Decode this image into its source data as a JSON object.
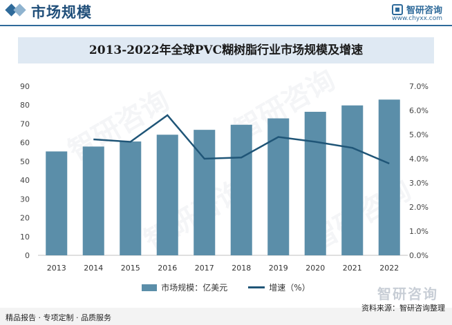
{
  "header": {
    "section_title": "市场规模",
    "brand_name": "智研咨询",
    "brand_url": "www.chyxx.com"
  },
  "chart_data": {
    "type": "bar+line",
    "title": "2013-2022年全球PVC糊树脂行业市场规模及增速",
    "categories": [
      "2013",
      "2014",
      "2015",
      "2016",
      "2017",
      "2018",
      "2019",
      "2020",
      "2021",
      "2022"
    ],
    "series": [
      {
        "name": "市场规模：亿美元",
        "type": "bar",
        "axis": "left",
        "color": "#5b8ea9",
        "values": [
          55.3,
          57.9,
          60.6,
          64.2,
          66.8,
          69.5,
          72.9,
          76.4,
          79.8,
          82.9
        ]
      },
      {
        "name": "增速（%）",
        "type": "line",
        "axis": "right",
        "color": "#1f5577",
        "values": [
          null,
          4.8,
          4.7,
          5.8,
          4.0,
          4.05,
          4.9,
          4.7,
          4.45,
          3.8
        ]
      }
    ],
    "y_left": {
      "min": 0,
      "max": 90,
      "ticks": [
        "0",
        "10",
        "20",
        "30",
        "40",
        "50",
        "60",
        "70",
        "80",
        "90"
      ]
    },
    "y_right": {
      "min": 0,
      "max": 7,
      "ticks": [
        "0.0%",
        "1.0%",
        "2.0%",
        "3.0%",
        "4.0%",
        "5.0%",
        "6.0%",
        "7.0%"
      ]
    }
  },
  "legend": {
    "bar_label": "市场规模：亿美元",
    "line_label": "增速（%）"
  },
  "footer": {
    "left_text": "精品报告 · 专项定制 · 品质服务",
    "source_text": "资料来源：智研咨询整理",
    "brand_big": "智研咨询"
  }
}
